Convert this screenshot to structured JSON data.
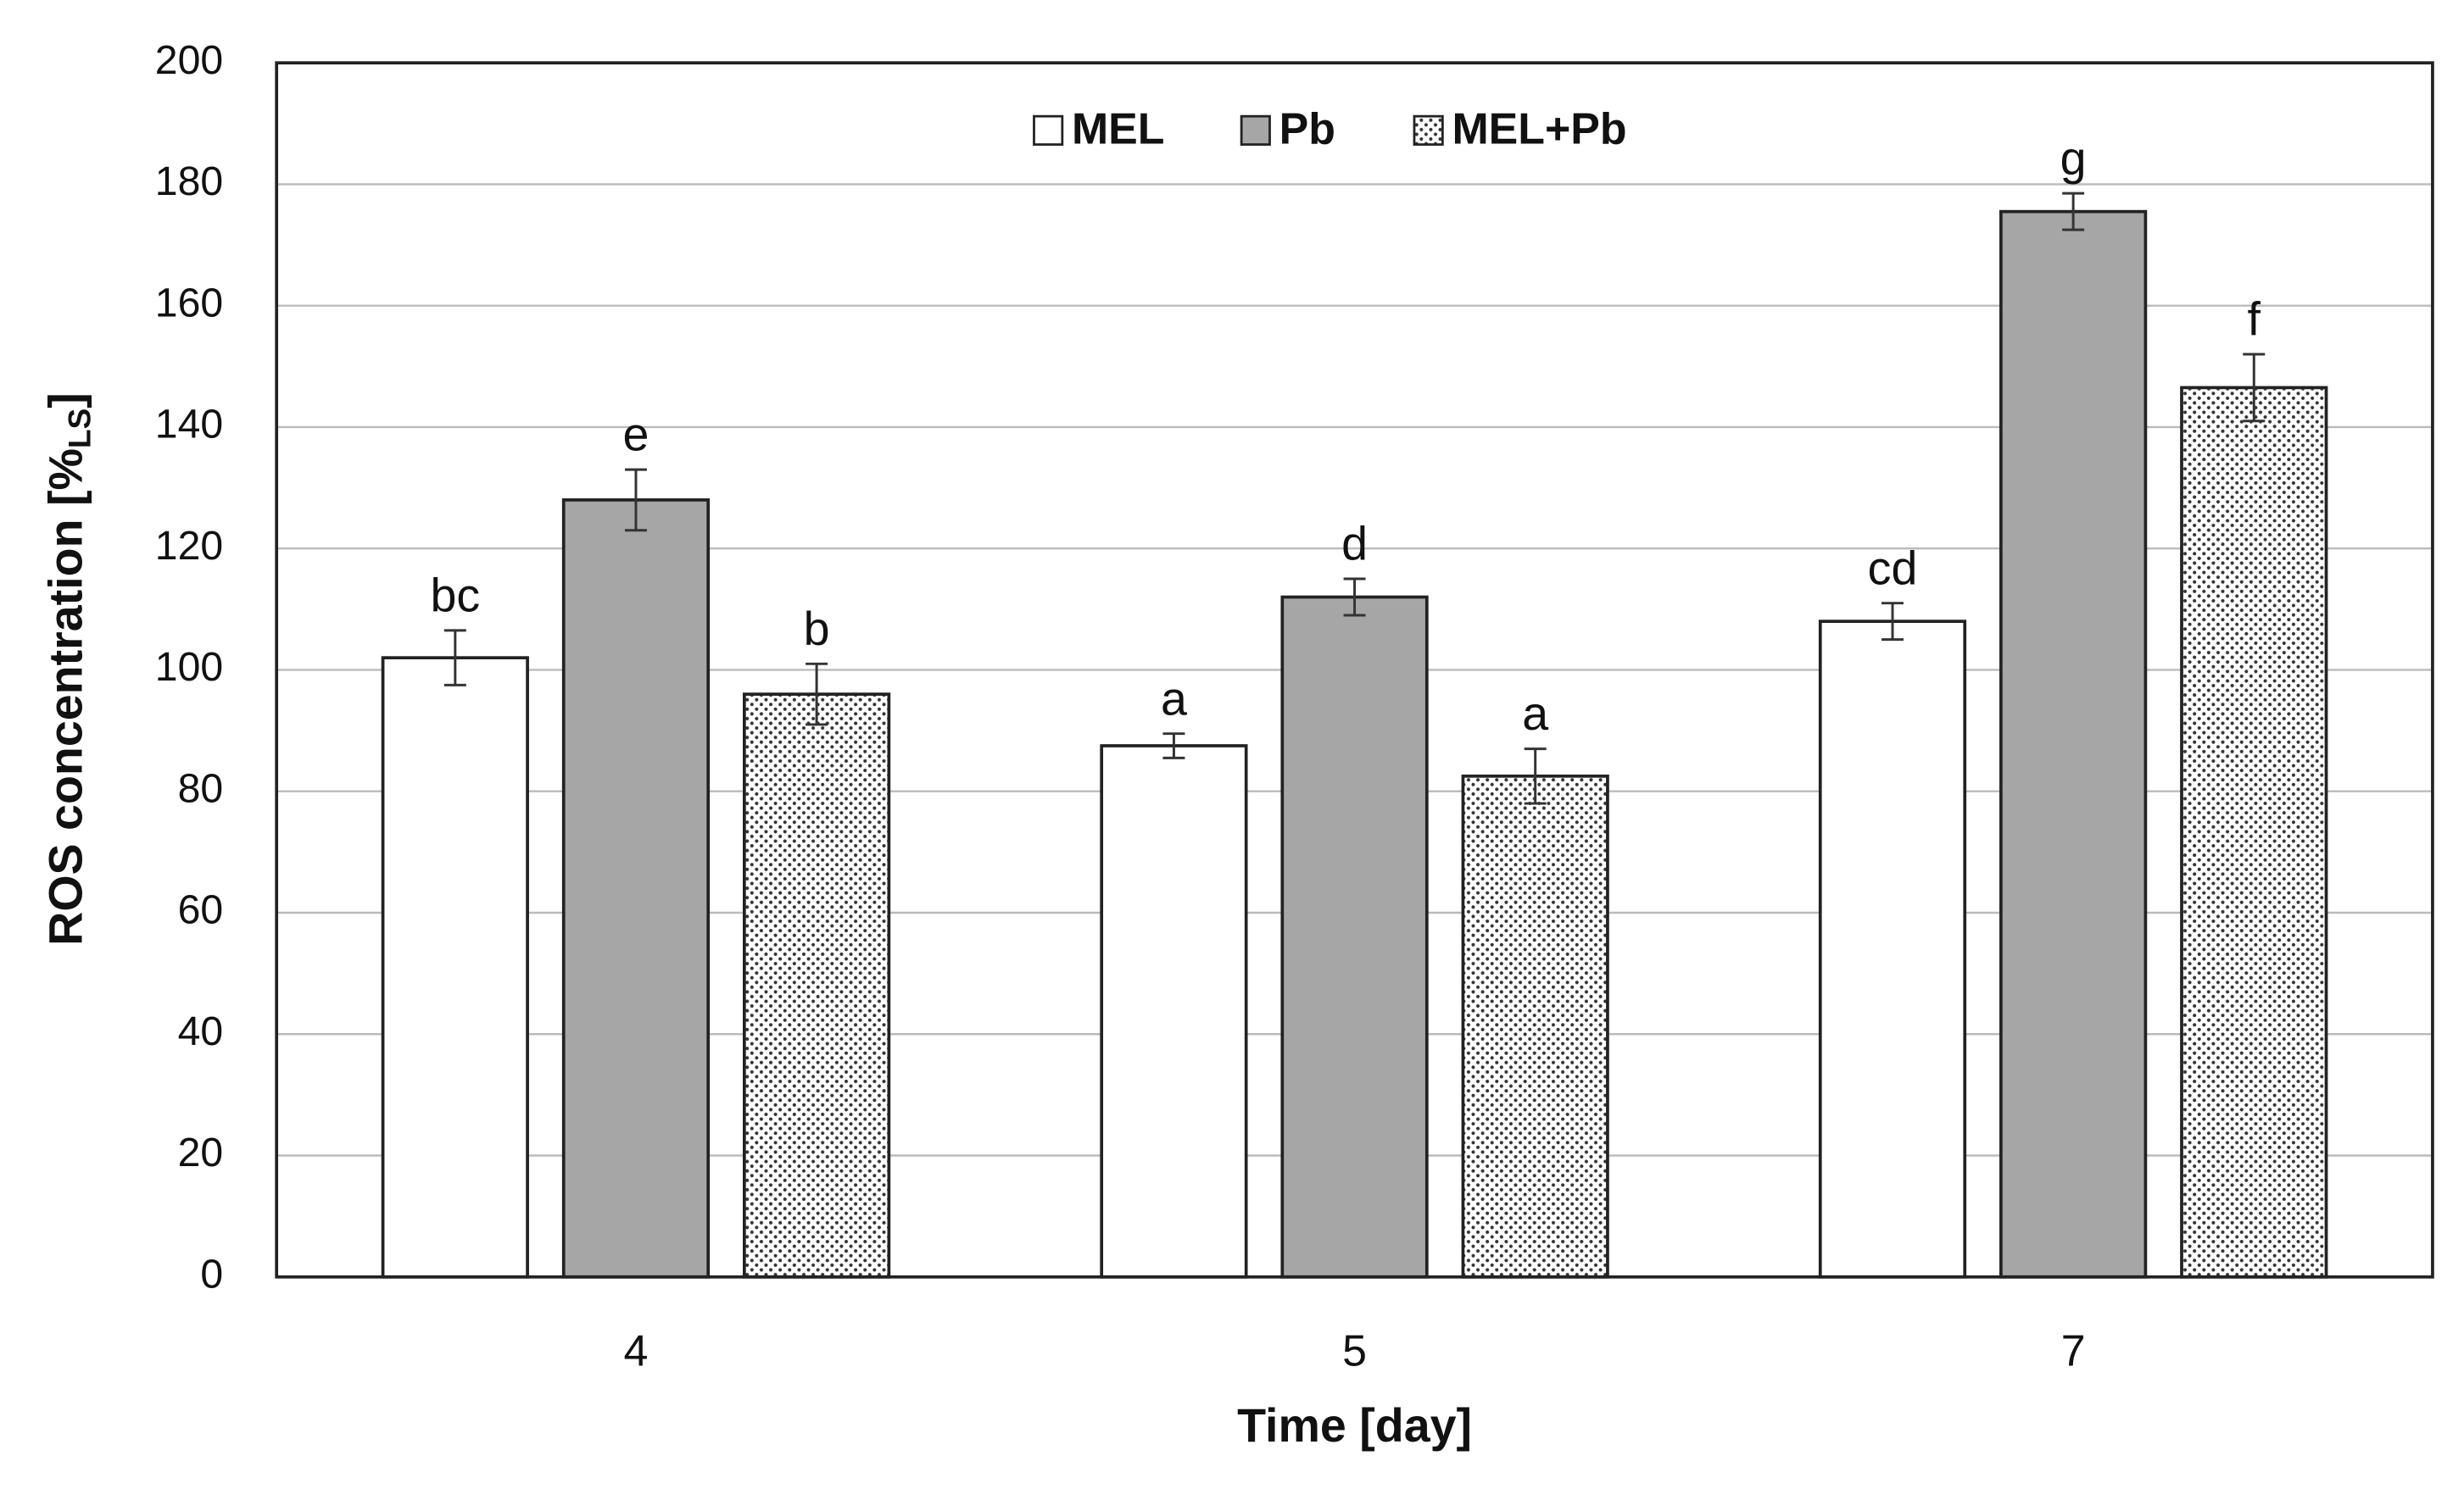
{
  "chart_data": {
    "type": "bar",
    "ylabel": [
      "ROS concentration [%",
      "LS",
      "]"
    ],
    "xlabel": "Time [day]",
    "categories": [
      "4",
      "5",
      "7"
    ],
    "series": [
      {
        "name": "MEL",
        "color": "#ffffff",
        "pattern": "none",
        "values": [
          102,
          87.5,
          108
        ],
        "errors": [
          4.5,
          2,
          3
        ],
        "labels": [
          "bc",
          "a",
          "cd"
        ]
      },
      {
        "name": "Pb",
        "color": "#a6a6a6",
        "pattern": "none",
        "values": [
          128,
          112,
          175.5
        ],
        "errors": [
          5,
          3,
          3
        ],
        "labels": [
          "e",
          "d",
          "g"
        ]
      },
      {
        "name": "MEL+Pb",
        "color": "#ffffff",
        "pattern": "dots",
        "values": [
          96,
          82.5,
          146.5
        ],
        "errors": [
          5,
          4.5,
          5.5
        ],
        "labels": [
          "b",
          "a",
          "f"
        ]
      }
    ],
    "ylim": [
      0,
      200
    ],
    "yticks": [
      0,
      20,
      40,
      60,
      80,
      100,
      120,
      140,
      160,
      180,
      200
    ],
    "grid": true,
    "legend": "top"
  }
}
